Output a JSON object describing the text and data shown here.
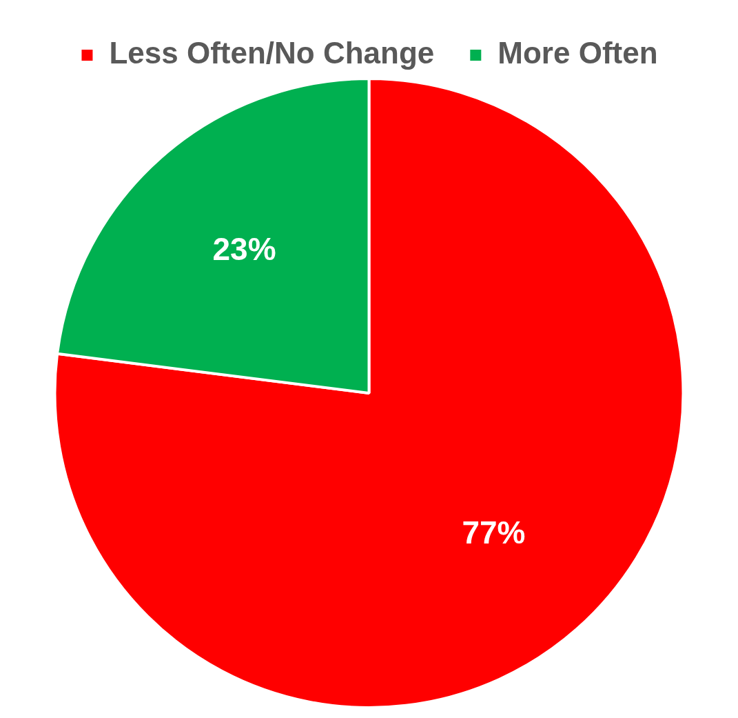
{
  "chart_data": {
    "type": "pie",
    "categories": [
      "Less Often/No Change",
      "More Often"
    ],
    "values": [
      77,
      23
    ],
    "colors": [
      "#ff0000",
      "#00b050"
    ],
    "value_labels": [
      "77%",
      "23%"
    ],
    "legend": "top"
  }
}
